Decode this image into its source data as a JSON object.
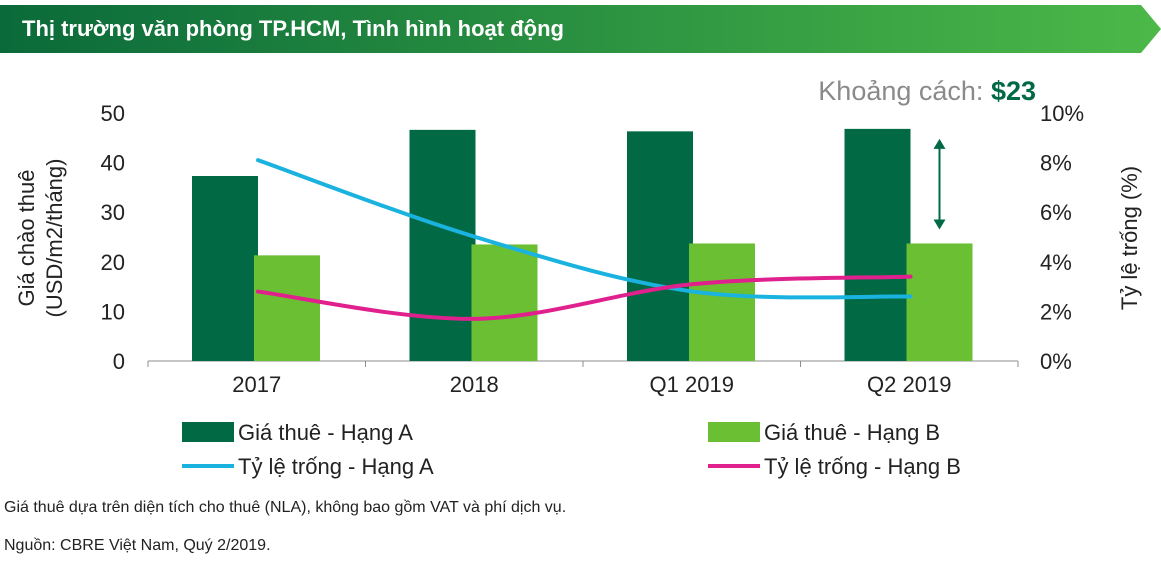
{
  "header": {
    "title": "Thị trường văn phòng TP.HCM, Tình hình hoạt động"
  },
  "colors": {
    "banner_dark": "#0a6a3a",
    "banner_light": "#4cb848",
    "grade_a_rent": "#016a45",
    "grade_b_rent": "#6bbf32",
    "grade_a_vacancy": "#1ab3e0",
    "grade_b_vacancy": "#e0208c",
    "gap_value": "#016a45",
    "gap_label": "#8a8a8a"
  },
  "annotation": {
    "gap_label": "Khoảng cách: ",
    "gap_value": "$23"
  },
  "chart_data": {
    "type": "bar",
    "categories": [
      "2017",
      "2018",
      "Q1 2019",
      "Q2 2019"
    ],
    "series": [
      {
        "name": "Giá thuê - Hạng A",
        "kind": "bar",
        "axis": "left",
        "values": [
          37.3,
          46.6,
          46.3,
          46.8
        ]
      },
      {
        "name": "Giá thuê - Hạng B",
        "kind": "bar",
        "axis": "left",
        "values": [
          21.3,
          23.5,
          23.7,
          23.7
        ]
      },
      {
        "name": "Tỷ lệ trống - Hạng A",
        "kind": "line",
        "axis": "right",
        "values": [
          8.1,
          5.0,
          2.8,
          2.6
        ]
      },
      {
        "name": "Tỷ lệ trống - Hạng B",
        "kind": "line",
        "axis": "right",
        "values": [
          2.8,
          1.7,
          3.1,
          3.4
        ]
      }
    ],
    "ylabel": "Giá chào thuê (USD/m2/tháng)",
    "ylabel_lines": [
      "Giá chào thuê",
      "(USD/m2/tháng)"
    ],
    "ylim": [
      0,
      50
    ],
    "yticks": [
      "0",
      "10",
      "20",
      "30",
      "40",
      "50"
    ],
    "y2label": "Tỷ lệ trống (%)",
    "y2lim": [
      0,
      10
    ],
    "y2ticks": [
      "0%",
      "2%",
      "4%",
      "6%",
      "8%",
      "10%"
    ],
    "legend_position": "bottom",
    "grid": false
  },
  "footnotes": {
    "note": "Giá thuê dựa trên diện tích cho thuê (NLA), không bao gồm VAT và phí dịch vụ.",
    "source": "Nguồn: CBRE Việt Nam, Quý 2/2019."
  }
}
